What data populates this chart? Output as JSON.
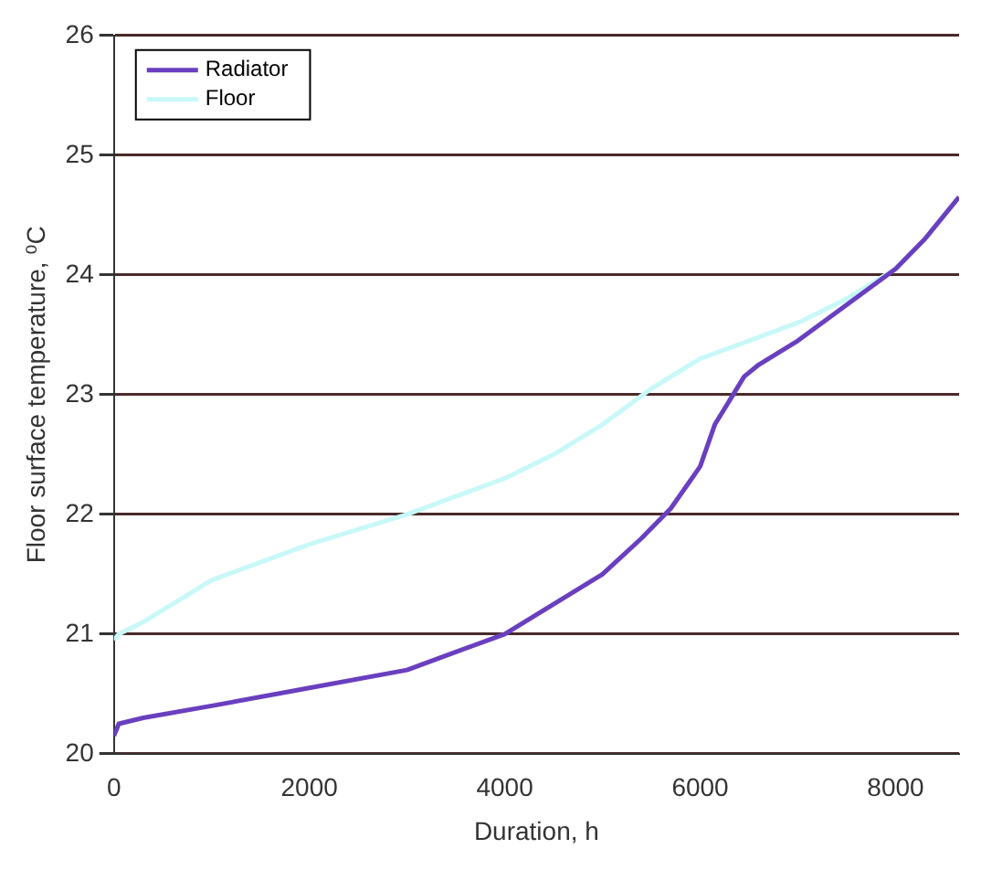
{
  "chart_data": {
    "type": "line",
    "xlabel": "Duration, h",
    "ylabel": "Floor surface temperature, ⁰C",
    "xlim": [
      0,
      8650
    ],
    "xticks": [
      0,
      2000,
      4000,
      6000,
      8000
    ],
    "ylim": [
      20,
      26
    ],
    "yticks": [
      20,
      21,
      22,
      23,
      24,
      25,
      26
    ],
    "grid": "y",
    "legend": "top left",
    "marker": "none",
    "line_style": "solid",
    "series": [
      {
        "name": "Radiator",
        "color": "#6a3fbf",
        "x": [
          0,
          50,
          300,
          1000,
          2000,
          3000,
          3500,
          4000,
          4500,
          5000,
          5400,
          5700,
          6000,
          6150,
          6300,
          6450,
          6600,
          7000,
          7500,
          8000,
          8300,
          8650
        ],
        "values": [
          20.15,
          20.25,
          20.3,
          20.4,
          20.55,
          20.7,
          20.85,
          21.0,
          21.25,
          21.5,
          21.8,
          22.05,
          22.4,
          22.75,
          22.95,
          23.15,
          23.25,
          23.45,
          23.75,
          24.05,
          24.3,
          24.65
        ]
      },
      {
        "name": "Floor",
        "color": "#c8f8f8",
        "x": [
          0,
          50,
          300,
          1000,
          2000,
          3000,
          4000,
          4500,
          5000,
          5500,
          6000,
          6500,
          7000,
          7500,
          8000,
          8300,
          8650
        ],
        "values": [
          20.95,
          21.0,
          21.1,
          21.45,
          21.75,
          22.0,
          22.3,
          22.5,
          22.75,
          23.05,
          23.3,
          23.45,
          23.6,
          23.8,
          24.05,
          24.3,
          24.65
        ]
      }
    ]
  }
}
